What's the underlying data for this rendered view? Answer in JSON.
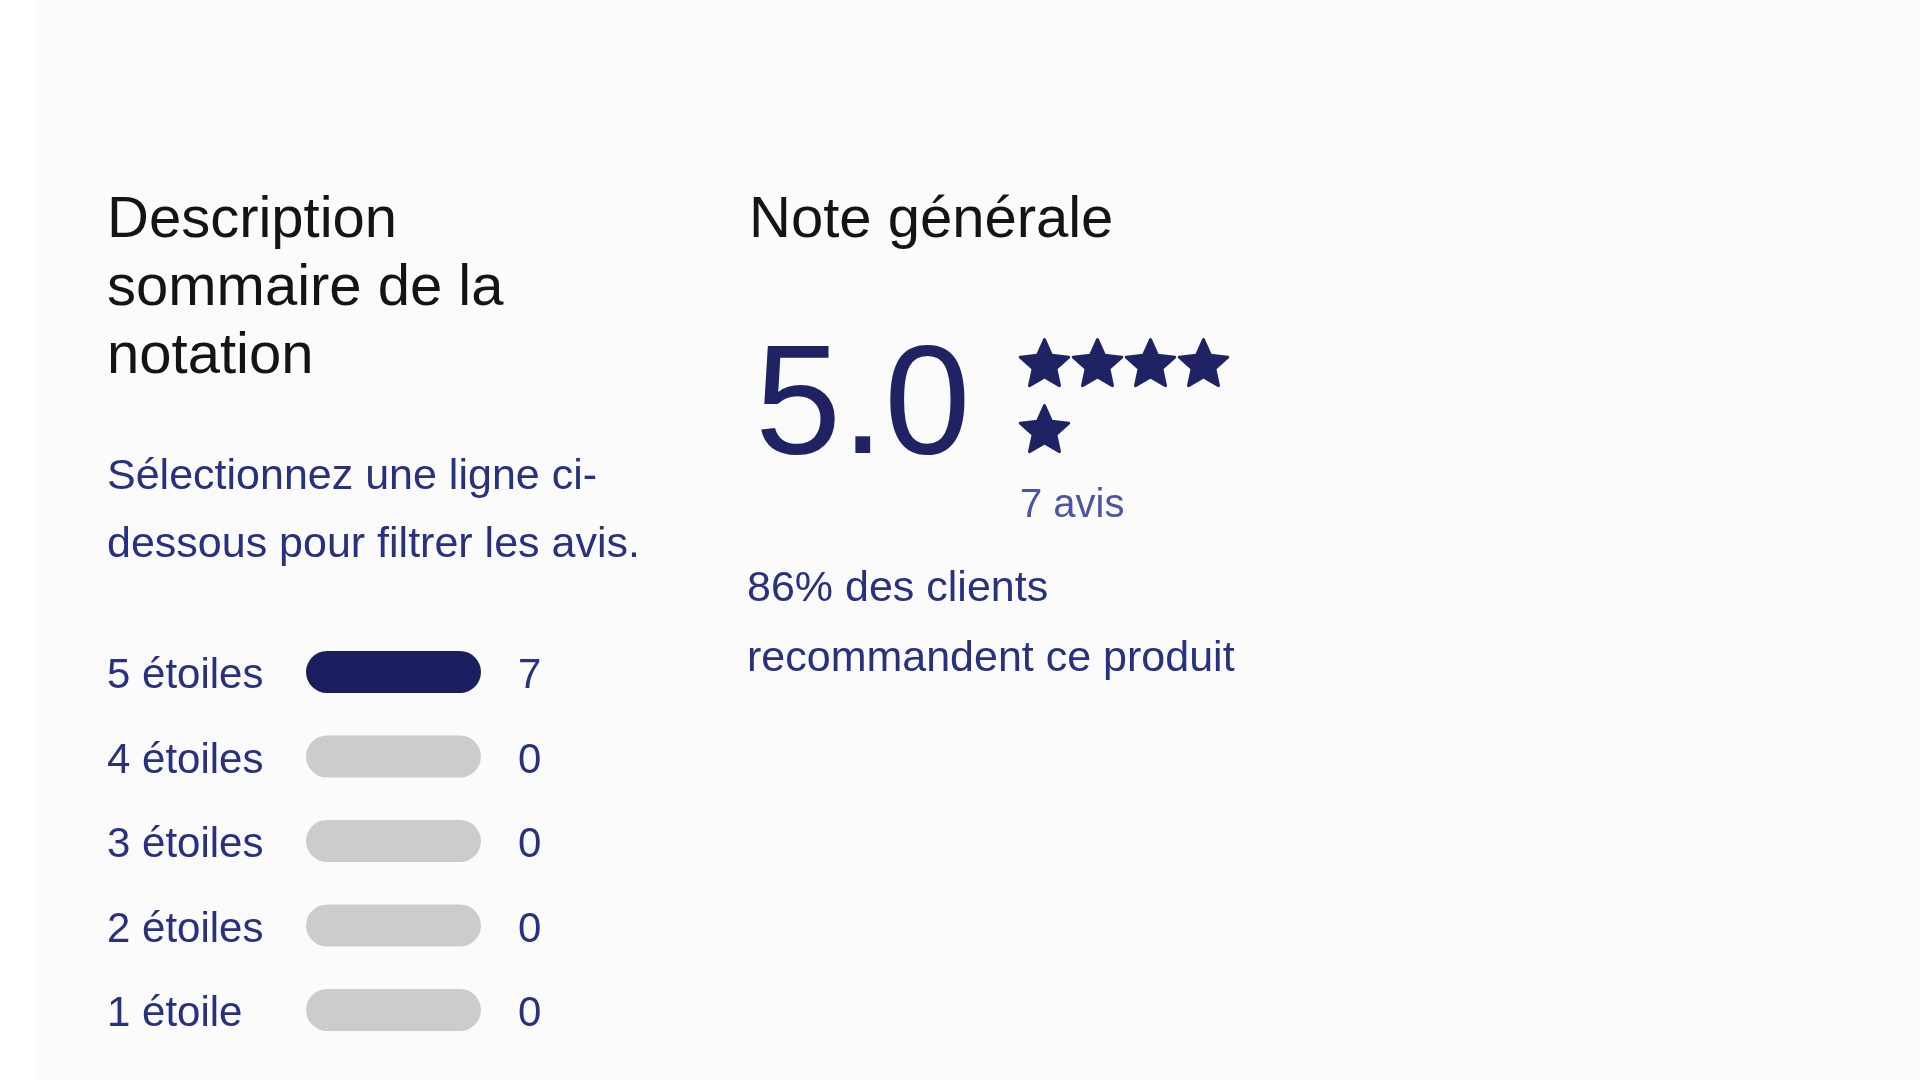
{
  "chart_data": [
    {
      "type": "bar",
      "orientation": "horizontal",
      "stacked": true,
      "title": "Description sommaire de la notation",
      "subtitle": "Sélectionnez une ligne ci-dessous pour filtrer les avis.",
      "categories": [
        "5 étoiles",
        "4 étoiles",
        "3 étoiles",
        "2 étoiles",
        "1 étoile"
      ],
      "series": [
        {
          "color": "#1b1e5e",
          "values": [
            7,
            0,
            0,
            0,
            0
          ],
          "value_labels": [
            "7",
            "0",
            "0",
            "0",
            "0"
          ]
        },
        {
          "color": "#cccccc",
          "values": [
            0,
            7,
            7,
            7,
            7
          ]
        }
      ]
    },
    {
      "type": "other",
      "title": "Note générale",
      "values": [
        5
      ],
      "value_labels": [
        "5.0"
      ],
      "color": "#1f2263",
      "annotations": [
        "7 avis",
        "86% des clients recommandent ce produit"
      ]
    }
  ]
}
